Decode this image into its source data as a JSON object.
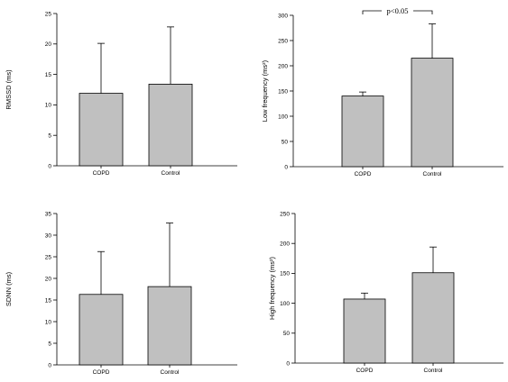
{
  "chart_data": [
    {
      "type": "bar",
      "categories": [
        "COPD",
        "Control"
      ],
      "values": [
        11.9,
        13.4
      ],
      "error": [
        8.2,
        9.4
      ],
      "ylabel": "RMSSD (ms)",
      "ylim": [
        0,
        25
      ],
      "yticks": [
        0,
        5,
        10,
        15,
        20,
        25
      ],
      "annotation": "",
      "bar_color": "#c0c0c0"
    },
    {
      "type": "bar",
      "categories": [
        "COPD",
        "Control"
      ],
      "values": [
        140,
        215
      ],
      "error": [
        8,
        68
      ],
      "ylabel": "Low frequency (ms²)",
      "ylim": [
        0,
        300
      ],
      "yticks": [
        0,
        50,
        100,
        150,
        200,
        250,
        300
      ],
      "annotation": "p<0.05",
      "bar_color": "#c0c0c0"
    },
    {
      "type": "bar",
      "categories": [
        "COPD",
        "Control"
      ],
      "values": [
        16.3,
        18.1
      ],
      "error": [
        9.9,
        14.7
      ],
      "ylabel": "SDNN (ms)",
      "ylim": [
        0,
        35
      ],
      "yticks": [
        0,
        5,
        10,
        15,
        20,
        25,
        30,
        35
      ],
      "annotation": "",
      "bar_color": "#c0c0c0"
    },
    {
      "type": "bar",
      "categories": [
        "COPD",
        "Control"
      ],
      "values": [
        107,
        151
      ],
      "error": [
        10,
        43
      ],
      "ylabel": "High frequency (ms²)",
      "ylim": [
        0,
        250
      ],
      "yticks": [
        0,
        50,
        100,
        150,
        200,
        250
      ],
      "annotation": "",
      "bar_color": "#c0c0c0"
    }
  ]
}
